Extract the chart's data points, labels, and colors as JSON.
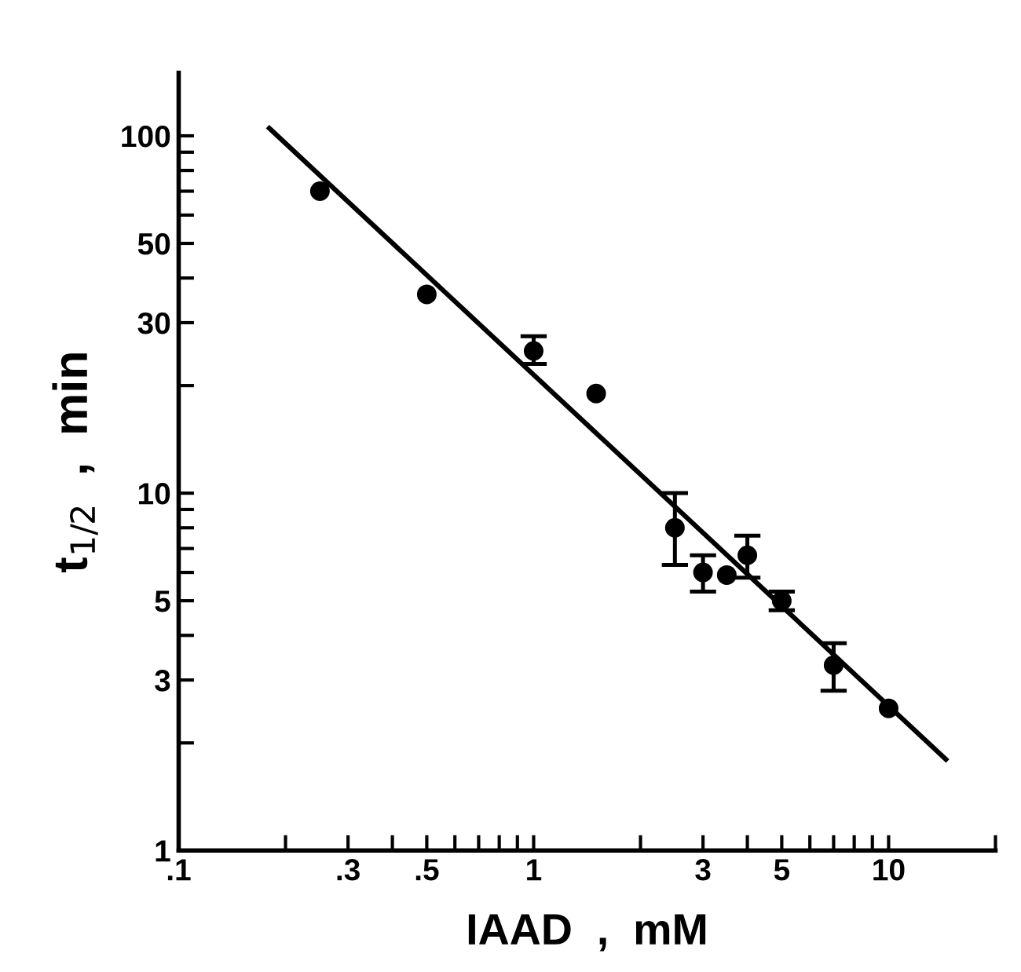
{
  "chart_data": {
    "type": "scatter",
    "xlabel": "IAAD  ,  mM",
    "ylabel": "t$_{1/2}$  ,  min",
    "log": "xy",
    "xlim": [
      0.1,
      20
    ],
    "ylim": [
      1,
      150
    ],
    "xticks": [
      {
        "value": 0.1,
        "label": ".1"
      },
      {
        "value": 0.2,
        "label": null
      },
      {
        "value": 0.3,
        "label": ".3"
      },
      {
        "value": 0.4,
        "label": null
      },
      {
        "value": 0.5,
        "label": ".5"
      },
      {
        "value": 0.6,
        "label": null
      },
      {
        "value": 0.7,
        "label": null
      },
      {
        "value": 0.8,
        "label": null
      },
      {
        "value": 0.9,
        "label": null
      },
      1,
      {
        "value": 2,
        "label": null
      },
      3,
      {
        "value": 4,
        "label": null
      },
      5,
      {
        "value": 6,
        "label": null
      },
      {
        "value": 7,
        "label": null
      },
      {
        "value": 8,
        "label": null
      },
      {
        "value": 9,
        "label": null
      },
      10,
      {
        "value": 20,
        "label": null
      }
    ],
    "yticks": [
      1,
      {
        "value": 2,
        "label": null
      },
      3,
      {
        "value": 4,
        "label": null
      },
      5,
      {
        "value": 6,
        "label": null
      },
      {
        "value": 7,
        "label": null
      },
      {
        "value": 8,
        "label": null
      },
      {
        "value": 9,
        "label": null
      },
      10,
      {
        "value": 20,
        "label": null
      },
      30,
      {
        "value": 40,
        "label": null
      },
      50,
      {
        "value": 60,
        "label": null
      },
      {
        "value": 70,
        "label": null
      },
      {
        "value": 80,
        "label": null
      },
      {
        "value": 90,
        "label": null
      },
      100
    ],
    "series": [
      {
        "marker": "circle",
        "color": "#000000",
        "x": [
          0.25,
          0.5,
          1,
          1.5,
          2.5,
          3,
          3.5,
          4,
          5,
          7,
          10
        ],
        "values": [
          70,
          36,
          25,
          19,
          8,
          6,
          5.9,
          6.7,
          5,
          3.3,
          2.5
        ],
        "errors": [
          null,
          null,
          [
            23,
            27.5
          ],
          null,
          [
            6.3,
            10
          ],
          [
            5.3,
            6.7
          ],
          null,
          [
            5.8,
            7.6
          ],
          [
            4.7,
            5.3
          ],
          [
            2.8,
            3.8
          ],
          null
        ]
      },
      {
        "type": "line",
        "marker": "none",
        "color": "#000000",
        "x": [
          0.18,
          14.5
        ],
        "values": [
          105,
          1.8
        ]
      }
    ]
  }
}
